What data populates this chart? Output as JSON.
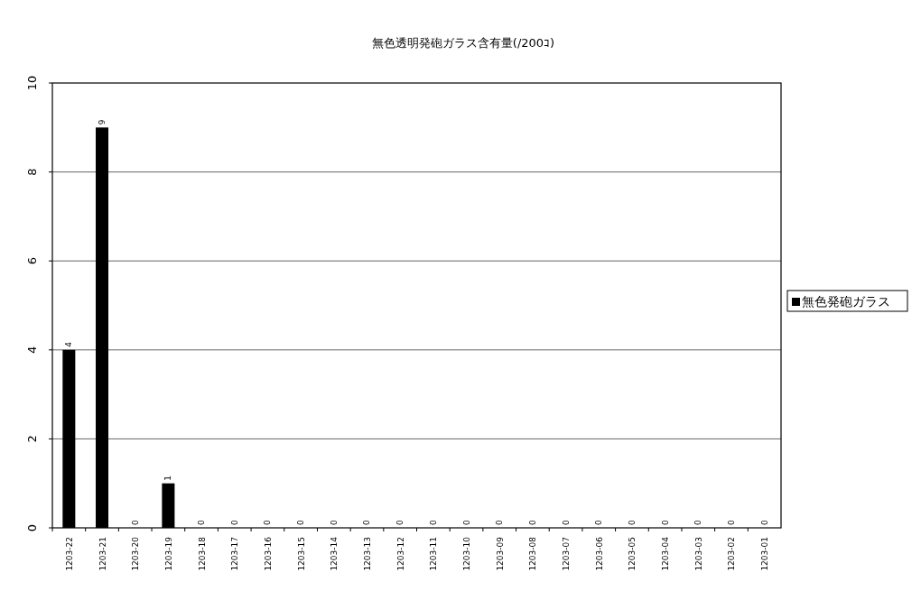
{
  "chart_data": {
    "type": "bar",
    "title": "無色透明発砲ガラス含有量(/200ｺ)",
    "categories": [
      "1203-22",
      "1203-21",
      "1203-20",
      "1203-19",
      "1203-18",
      "1203-17",
      "1203-16",
      "1203-15",
      "1203-14",
      "1203-13",
      "1203-12",
      "1203-11",
      "1203-10",
      "1203-09",
      "1203-08",
      "1203-07",
      "1203-06",
      "1203-05",
      "1203-04",
      "1203-03",
      "1203-02",
      "1203-01"
    ],
    "series": [
      {
        "name": "無色発砲ガラス",
        "color": "#000000",
        "values": [
          4,
          9,
          0,
          1,
          0,
          0,
          0,
          0,
          0,
          0,
          0,
          0,
          0,
          0,
          0,
          0,
          0,
          0,
          0,
          0,
          0,
          0
        ]
      }
    ],
    "ylim": [
      0,
      10
    ],
    "yticks": [
      0,
      2,
      4,
      6,
      8,
      10
    ],
    "grid": "y",
    "legend": "right",
    "data_labels": true
  }
}
